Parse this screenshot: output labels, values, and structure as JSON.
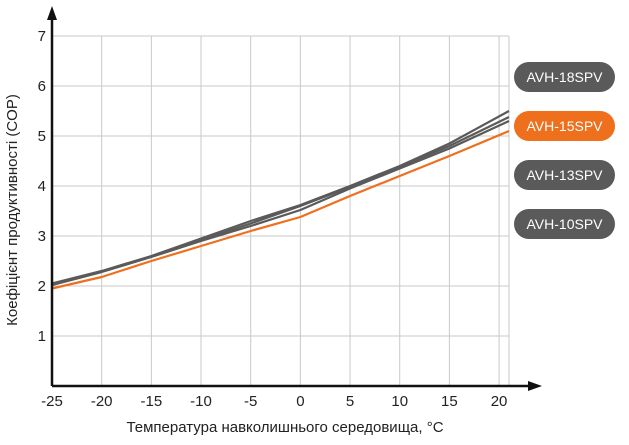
{
  "chart_data": {
    "type": "line",
    "xlabel": "Температура навколишнього середовища, °C",
    "ylabel": "Коефіцієнт продуктивності (COP)",
    "xlim": [
      -25,
      21
    ],
    "ylim": [
      0,
      7
    ],
    "x_ticks": [
      -25,
      -20,
      -15,
      -10,
      -5,
      0,
      5,
      10,
      15,
      20
    ],
    "y_ticks": [
      1,
      2,
      3,
      4,
      5,
      6,
      7
    ],
    "x_tick_labels": [
      "-25",
      "-20",
      "-15",
      "-10",
      "-5",
      "0",
      "5",
      "10",
      "15",
      "20"
    ],
    "y_tick_labels": [
      "1",
      "2",
      "3",
      "4",
      "5",
      "6",
      "7"
    ],
    "grid": true,
    "legend_position": "right",
    "x": [
      -25,
      -20,
      -15,
      -10,
      -5,
      0,
      5,
      10,
      15,
      21
    ],
    "series": [
      {
        "name": "AVH-18SPV",
        "color": "#5a5a5a",
        "values": [
          2.05,
          2.3,
          2.6,
          2.95,
          3.3,
          3.62,
          4.0,
          4.4,
          4.85,
          5.5
        ]
      },
      {
        "name": "AVH-15SPV",
        "color": "#ee6f1c",
        "values": [
          1.95,
          2.18,
          2.5,
          2.8,
          3.1,
          3.38,
          3.8,
          4.2,
          4.6,
          5.1
        ]
      },
      {
        "name": "AVH-13SPV",
        "color": "#5a5a5a",
        "values": [
          2.02,
          2.28,
          2.58,
          2.9,
          3.2,
          3.52,
          3.95,
          4.35,
          4.75,
          5.3
        ]
      },
      {
        "name": "AVH-10SPV",
        "color": "#5a5a5a",
        "values": [
          2.04,
          2.29,
          2.59,
          2.92,
          3.25,
          3.6,
          3.98,
          4.38,
          4.8,
          5.38
        ]
      }
    ]
  }
}
